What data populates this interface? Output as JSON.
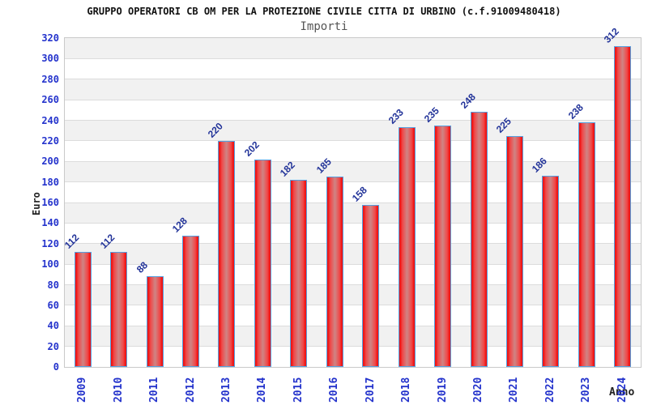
{
  "chart_data": {
    "type": "bar",
    "title": "GRUPPO OPERATORI CB OM PER LA PROTEZIONE CIVILE CITTA DI URBINO (c.f.91009480418)",
    "subtitle": "Importi",
    "xlabel": "Anno",
    "ylabel": "Euro",
    "categories": [
      "2009",
      "2010",
      "2011",
      "2012",
      "2013",
      "2014",
      "2015",
      "2016",
      "2017",
      "2018",
      "2019",
      "2020",
      "2021",
      "2022",
      "2023",
      "2024"
    ],
    "values": [
      112,
      112,
      88,
      128,
      220,
      202,
      182,
      185,
      158,
      233,
      235,
      248,
      225,
      186,
      238,
      312
    ],
    "ylim": [
      0,
      320
    ],
    "ytick_step": 20,
    "grid": true,
    "legend": "none",
    "colors": {
      "bar_edge": "#ee1515",
      "bar_mid": "#cf8585",
      "bar_border": "#55a0e0",
      "band_gray": "#f1f1f1",
      "band_white": "#ffffff",
      "gridline": "#dcdcdc",
      "plot_border": "#c9c9c9",
      "tick_label": "#2433cc",
      "value_label": "#223399",
      "axis_title": "#222222",
      "title": "#111111",
      "subtitle": "#555555"
    }
  }
}
